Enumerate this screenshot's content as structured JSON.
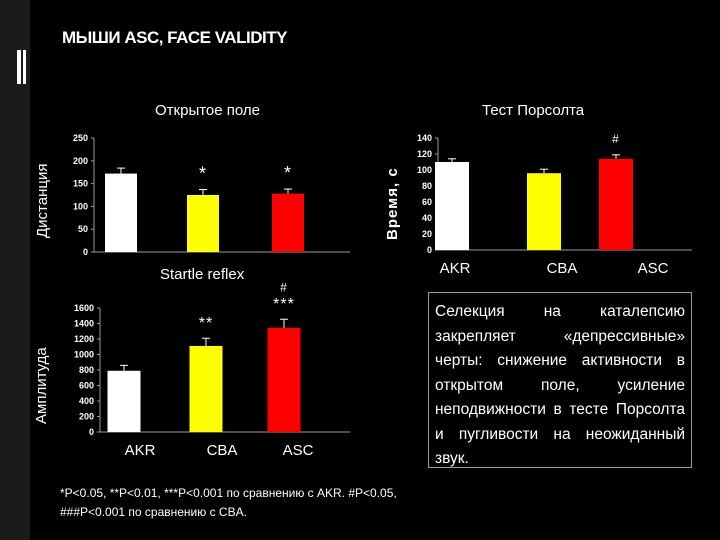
{
  "slide": {
    "title": "МЫШИ ASC, FACE VALIDITY",
    "panel_titles": {
      "open_field": "Открытое поле",
      "porsolt": "Тест Порсолта",
      "startle": "Startle reflex"
    },
    "axis_labels": {
      "distance": "Дистанция",
      "time": "Время, с",
      "amplitude": "Амплитуда"
    },
    "categories": [
      "AKR",
      "CBA",
      "ASC"
    ],
    "text_box": "Селекция на каталепсию закрепляет «депрессивные» черты: снижение активности в открытом поле, усиление неподвижности в тесте Порсолта и пугливости на неожиданный звук.",
    "footnote_line1": "*P<0.05, **P<0.01, ***P<0.001 по сравнению с AKR. #P<0.05,",
    "footnote_line2": "###P<0.001 по сравнению с CBA."
  },
  "colors": {
    "AKR": "#ffffff",
    "CBA": "#ffff00",
    "ASC": "#ff0000",
    "background": "#000000"
  },
  "chart_data": [
    {
      "id": "open_field",
      "type": "bar",
      "title": "Открытое поле",
      "ylabel": "Дистанция",
      "categories": [
        "AKR",
        "CBA",
        "ASC"
      ],
      "values": [
        172,
        125,
        128
      ],
      "errors": [
        12,
        12,
        10
      ],
      "annotations": [
        "",
        "*",
        "*"
      ],
      "ylim": [
        0,
        250
      ],
      "yticks": [
        0,
        50,
        100,
        150,
        200,
        250
      ]
    },
    {
      "id": "porsolt",
      "type": "bar",
      "title": "Тест Порсолта",
      "ylabel": "Время, с",
      "categories": [
        "AKR",
        "CBA",
        "ASC"
      ],
      "values": [
        110,
        96,
        114
      ],
      "errors": [
        4,
        5,
        5
      ],
      "annotations": [
        "",
        "",
        "#"
      ],
      "ylim": [
        0,
        140
      ],
      "yticks": [
        0,
        20,
        40,
        60,
        80,
        100,
        120,
        140
      ]
    },
    {
      "id": "startle",
      "type": "bar",
      "title": "Startle reflex",
      "ylabel": "Амплитуда",
      "categories": [
        "AKR",
        "CBA",
        "ASC"
      ],
      "values": [
        790,
        1110,
        1345
      ],
      "errors": [
        70,
        100,
        110
      ],
      "annotations": [
        "",
        "**",
        "#\n***"
      ],
      "ylim": [
        0,
        1600
      ],
      "yticks": [
        0,
        200,
        400,
        600,
        800,
        1000,
        1200,
        1400,
        1600
      ]
    }
  ]
}
